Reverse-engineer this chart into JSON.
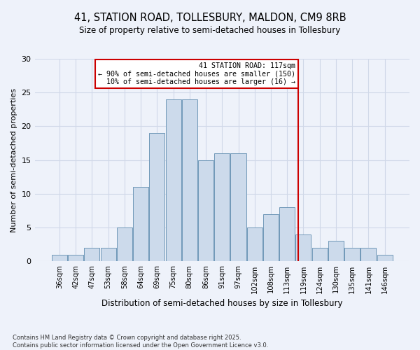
{
  "title_line1": "41, STATION ROAD, TOLLESBURY, MALDON, CM9 8RB",
  "title_line2": "Size of property relative to semi-detached houses in Tollesbury",
  "xlabel": "Distribution of semi-detached houses by size in Tollesbury",
  "ylabel": "Number of semi-detached properties",
  "bin_labels": [
    "36sqm",
    "42sqm",
    "47sqm",
    "53sqm",
    "58sqm",
    "64sqm",
    "69sqm",
    "75sqm",
    "80sqm",
    "86sqm",
    "91sqm",
    "97sqm",
    "102sqm",
    "108sqm",
    "113sqm",
    "119sqm",
    "124sqm",
    "130sqm",
    "135sqm",
    "141sqm",
    "146sqm"
  ],
  "bar_heights": [
    1,
    1,
    2,
    2,
    5,
    11,
    19,
    24,
    24,
    15,
    16,
    16,
    5,
    7,
    8,
    4,
    2,
    3,
    2,
    2,
    1
  ],
  "bar_color": "#ccdaeb",
  "bar_edgecolor": "#7098b8",
  "annotation_text": "41 STATION ROAD: 117sqm\n← 90% of semi-detached houses are smaller (150)\n10% of semi-detached houses are larger (16) →",
  "annotation_box_color": "#ffffff",
  "annotation_box_edgecolor": "#cc0000",
  "vline_color": "#cc0000",
  "ylim": [
    0,
    30
  ],
  "yticks": [
    0,
    5,
    10,
    15,
    20,
    25,
    30
  ],
  "footer_line1": "Contains HM Land Registry data © Crown copyright and database right 2025.",
  "footer_line2": "Contains public sector information licensed under the Open Government Licence v3.0.",
  "bg_color": "#eef2fa",
  "grid_color": "#d0d8e8"
}
